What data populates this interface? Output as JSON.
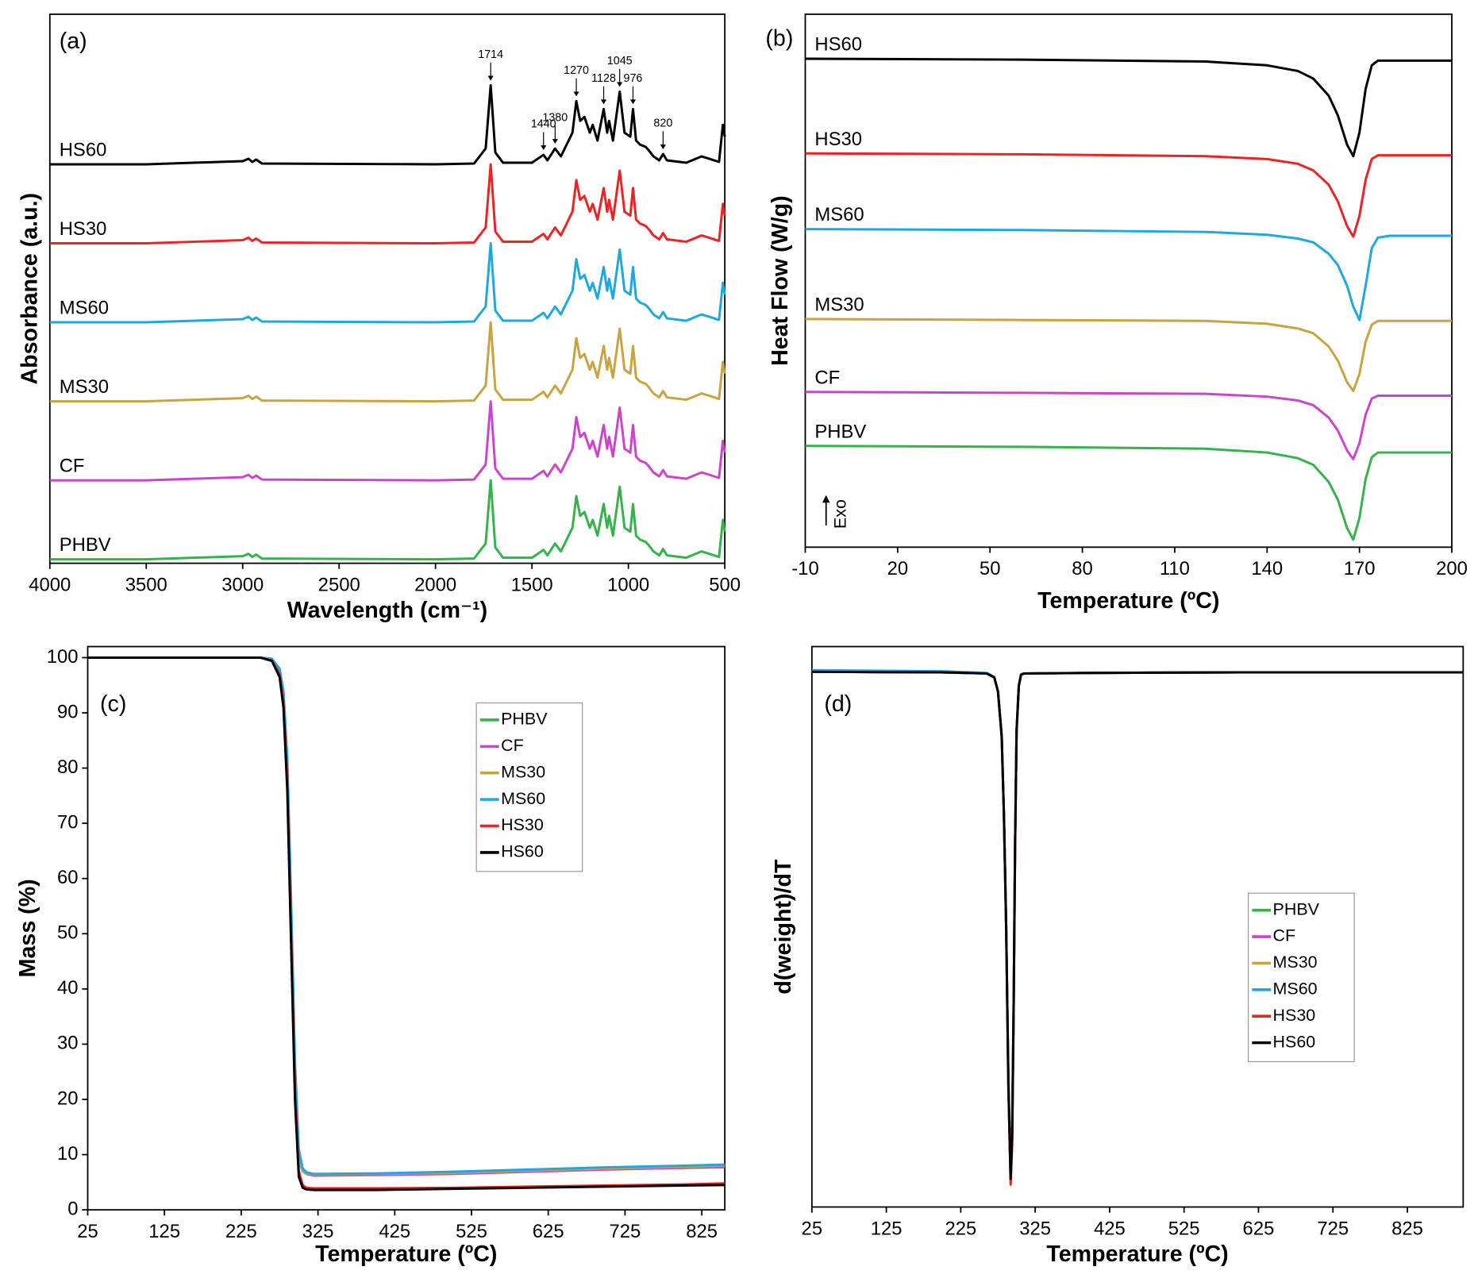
{
  "chart_data": [
    {
      "type": "line",
      "panel_label": "(a)",
      "x_label": "Wavelength (cm⁻¹)",
      "y_label": "Absorbance (a.u.)",
      "xlim": [
        4000,
        500
      ],
      "xticks": [
        4000,
        3500,
        3000,
        2500,
        2000,
        1500,
        1000,
        500
      ],
      "ylim": [
        -0.05,
        6.9
      ],
      "legend": "inline",
      "x": [
        4000,
        3500,
        3000,
        2970,
        2950,
        2930,
        2900,
        2000,
        1800,
        1740,
        1714,
        1690,
        1650,
        1500,
        1440,
        1420,
        1380,
        1350,
        1290,
        1270,
        1250,
        1228,
        1200,
        1185,
        1160,
        1128,
        1110,
        1100,
        1080,
        1045,
        1020,
        990,
        976,
        960,
        940,
        910,
        895,
        870,
        840,
        820,
        800,
        700,
        620,
        580,
        530,
        510,
        500
      ],
      "series": [
        {
          "name": "PHBV",
          "color": "#33b34a",
          "values": [
            0,
            0,
            0.04,
            0.07,
            0.03,
            0.06,
            0.01,
            0,
            0.01,
            0.2,
            1.0,
            0.15,
            0.02,
            0.02,
            0.12,
            0.05,
            0.2,
            0.1,
            0.4,
            0.8,
            0.55,
            0.6,
            0.4,
            0.5,
            0.3,
            0.7,
            0.4,
            0.55,
            0.3,
            0.92,
            0.4,
            0.35,
            0.7,
            0.3,
            0.25,
            0.22,
            0.18,
            0.1,
            0.05,
            0.13,
            0.05,
            0.02,
            0.1,
            0.07,
            0.03,
            0.5,
            0.35
          ]
        },
        {
          "name": "CF",
          "color": "#cc44cc",
          "values": [
            1,
            1,
            1.04,
            1.07,
            1.03,
            1.06,
            1.01,
            1,
            1.01,
            1.2,
            2.0,
            1.15,
            1.02,
            1.02,
            1.12,
            1.05,
            1.2,
            1.1,
            1.4,
            1.8,
            1.55,
            1.6,
            1.4,
            1.5,
            1.3,
            1.7,
            1.4,
            1.55,
            1.3,
            1.92,
            1.4,
            1.35,
            1.7,
            1.3,
            1.25,
            1.22,
            1.18,
            1.1,
            1.05,
            1.13,
            1.05,
            1.02,
            1.1,
            1.07,
            1.03,
            1.5,
            1.35
          ]
        },
        {
          "name": "MS30",
          "color": "#c9a33f",
          "values": [
            2,
            2,
            2.04,
            2.07,
            2.03,
            2.06,
            2.01,
            2,
            2.01,
            2.2,
            3.0,
            2.15,
            2.02,
            2.02,
            2.12,
            2.05,
            2.2,
            2.1,
            2.4,
            2.8,
            2.55,
            2.6,
            2.4,
            2.5,
            2.3,
            2.7,
            2.4,
            2.55,
            2.3,
            2.92,
            2.4,
            2.35,
            2.7,
            2.3,
            2.25,
            2.22,
            2.18,
            2.1,
            2.05,
            2.13,
            2.05,
            2.02,
            2.1,
            2.07,
            2.03,
            2.5,
            2.35
          ]
        },
        {
          "name": "MS60",
          "color": "#1ea8e0",
          "values": [
            3,
            3,
            3.04,
            3.07,
            3.03,
            3.06,
            3.01,
            3,
            3.01,
            3.2,
            4.0,
            3.15,
            3.02,
            3.02,
            3.12,
            3.05,
            3.2,
            3.1,
            3.4,
            3.8,
            3.55,
            3.6,
            3.4,
            3.5,
            3.3,
            3.7,
            3.4,
            3.55,
            3.3,
            3.92,
            3.4,
            3.35,
            3.7,
            3.3,
            3.25,
            3.22,
            3.18,
            3.1,
            3.05,
            3.13,
            3.05,
            3.02,
            3.1,
            3.07,
            3.03,
            3.5,
            3.35
          ]
        },
        {
          "name": "HS30",
          "color": "#ee2222",
          "values": [
            4,
            4,
            4.04,
            4.07,
            4.03,
            4.06,
            4.01,
            4,
            4.01,
            4.2,
            5.0,
            4.15,
            4.02,
            4.02,
            4.12,
            4.05,
            4.2,
            4.1,
            4.4,
            4.8,
            4.55,
            4.6,
            4.4,
            4.5,
            4.3,
            4.7,
            4.4,
            4.55,
            4.3,
            4.92,
            4.4,
            4.35,
            4.7,
            4.3,
            4.25,
            4.22,
            4.18,
            4.1,
            4.05,
            4.13,
            4.05,
            4.02,
            4.1,
            4.07,
            4.03,
            4.5,
            4.35
          ]
        },
        {
          "name": "HS60",
          "color": "#000000",
          "values": [
            5,
            5,
            5.04,
            5.07,
            5.03,
            5.06,
            5.01,
            5,
            5.01,
            5.2,
            6.0,
            5.15,
            5.02,
            5.02,
            5.12,
            5.05,
            5.2,
            5.1,
            5.4,
            5.8,
            5.55,
            5.6,
            5.4,
            5.5,
            5.3,
            5.7,
            5.4,
            5.55,
            5.3,
            5.92,
            5.4,
            5.35,
            5.7,
            5.3,
            5.25,
            5.22,
            5.18,
            5.1,
            5.05,
            5.13,
            5.05,
            5.02,
            5.1,
            5.07,
            5.03,
            5.5,
            5.35
          ]
        }
      ],
      "annotations": [
        {
          "x": 1714,
          "label": "1714"
        },
        {
          "x": 1440,
          "label": "1440"
        },
        {
          "x": 1380,
          "label": "1380"
        },
        {
          "x": 1270,
          "label": "1270"
        },
        {
          "x": 1128,
          "label": "1128"
        },
        {
          "x": 1045,
          "label": "1045"
        },
        {
          "x": 976,
          "label": "976"
        },
        {
          "x": 820,
          "label": "820"
        }
      ]
    },
    {
      "type": "line",
      "panel_label": "(b)",
      "x_label": "Temperature (ºC)",
      "y_label": "Heat Flow (W/g)",
      "annotation": "Exo",
      "xlim": [
        -10,
        200
      ],
      "xticks": [
        -10,
        20,
        50,
        80,
        110,
        140,
        170,
        200
      ],
      "ylim": [
        0,
        5.63
      ],
      "legend": "inline",
      "x": [
        -10,
        60,
        120,
        140,
        150,
        155,
        160,
        163,
        166,
        168,
        170,
        172,
        174,
        176,
        180,
        200
      ],
      "series": [
        {
          "name": "PHBV",
          "color": "#33b34a",
          "values": [
            1.07,
            1.06,
            1.04,
            1.0,
            0.94,
            0.87,
            0.69,
            0.5,
            0.2,
            0.08,
            0.31,
            0.72,
            0.95,
            1.0,
            1.0,
            1.0
          ]
        },
        {
          "name": "CF",
          "color": "#cc44cc",
          "values": [
            1.64,
            1.63,
            1.62,
            1.59,
            1.55,
            1.5,
            1.37,
            1.23,
            1.02,
            0.93,
            1.1,
            1.4,
            1.57,
            1.6,
            1.6,
            1.6
          ]
        },
        {
          "name": "MS30",
          "color": "#c9a33f",
          "values": [
            2.41,
            2.4,
            2.39,
            2.36,
            2.31,
            2.26,
            2.12,
            1.97,
            1.74,
            1.65,
            1.83,
            2.17,
            2.35,
            2.39,
            2.39,
            2.39
          ]
        },
        {
          "name": "MS60",
          "color": "#1ea8e0",
          "values": [
            3.36,
            3.35,
            3.33,
            3.3,
            3.26,
            3.22,
            3.1,
            2.98,
            2.76,
            2.54,
            2.4,
            2.76,
            3.16,
            3.27,
            3.29,
            3.29
          ]
        },
        {
          "name": "HS30",
          "color": "#ee2222",
          "values": [
            4.16,
            4.15,
            4.13,
            4.1,
            4.05,
            3.98,
            3.83,
            3.65,
            3.39,
            3.28,
            3.5,
            3.88,
            4.1,
            4.14,
            4.14,
            4.14
          ]
        },
        {
          "name": "HS60",
          "color": "#000000",
          "values": [
            5.16,
            5.15,
            5.13,
            5.09,
            5.03,
            4.95,
            4.77,
            4.56,
            4.25,
            4.13,
            4.38,
            4.84,
            5.09,
            5.14,
            5.14,
            5.14
          ]
        }
      ]
    },
    {
      "type": "line",
      "panel_label": "(c)",
      "x_label": "Temperature (ºC)",
      "y_label": "Mass (%)",
      "xlim": [
        25,
        855
      ],
      "xticks": [
        25,
        125,
        225,
        325,
        425,
        525,
        625,
        725,
        825
      ],
      "ylim": [
        0,
        102
      ],
      "yticks": [
        0,
        10,
        20,
        30,
        40,
        50,
        60,
        70,
        80,
        90,
        100
      ],
      "legend": "upper center",
      "x": [
        25,
        250,
        265,
        275,
        280,
        285,
        290,
        295,
        300,
        305,
        310,
        320,
        400,
        500,
        600,
        700,
        800,
        855
      ],
      "series": [
        {
          "name": "PHBV",
          "color": "#33b34a",
          "values": [
            100,
            100,
            99.5,
            97,
            92,
            78,
            50,
            22,
            9,
            7,
            6.6,
            6.3,
            6.4,
            6.6,
            7.0,
            7.4,
            7.6,
            7.7
          ]
        },
        {
          "name": "CF",
          "color": "#cc44cc",
          "values": [
            100,
            100,
            99.7,
            97.5,
            93,
            80,
            53,
            24,
            9.5,
            7,
            6.5,
            6.2,
            6.3,
            6.5,
            6.9,
            7.3,
            7.6,
            7.8
          ]
        },
        {
          "name": "MS30",
          "color": "#c9a33f",
          "values": [
            100,
            100,
            99.6,
            97,
            92.5,
            79,
            52,
            23,
            9,
            7,
            6.6,
            6.4,
            6.5,
            6.7,
            7.1,
            7.5,
            7.8,
            8.0
          ]
        },
        {
          "name": "MS60",
          "color": "#1ea8e0",
          "values": [
            100,
            100,
            99.8,
            98,
            94,
            82,
            56,
            27,
            11,
            7.5,
            6.8,
            6.5,
            6.6,
            6.9,
            7.3,
            7.7,
            8.0,
            8.2
          ]
        },
        {
          "name": "HS30",
          "color": "#ee2222",
          "values": [
            100,
            100,
            99.5,
            97,
            92,
            78,
            50,
            22,
            7,
            4.5,
            4.0,
            3.9,
            3.9,
            4.0,
            4.2,
            4.4,
            4.6,
            4.8
          ]
        },
        {
          "name": "HS60",
          "color": "#000000",
          "values": [
            100,
            100,
            99.4,
            96.5,
            91,
            76,
            48,
            20,
            6,
            4,
            3.7,
            3.6,
            3.6,
            3.8,
            4.0,
            4.2,
            4.4,
            4.5
          ]
        }
      ]
    },
    {
      "type": "line",
      "panel_label": "(d)",
      "x_label": "Temperature (ºC)",
      "y_label": "d(weight)/dT",
      "xlim": [
        25,
        900
      ],
      "xticks": [
        25,
        125,
        225,
        325,
        425,
        525,
        625,
        725,
        825
      ],
      "ylim": [
        0,
        100
      ],
      "legend": "center right",
      "x": [
        25,
        200,
        260,
        270,
        275,
        280,
        283,
        286,
        289,
        292,
        294,
        296,
        298,
        300,
        303,
        306,
        310,
        400,
        600,
        900
      ],
      "series": [
        {
          "name": "PHBV",
          "color": "#33b34a",
          "values": [
            95.5,
            95.4,
            95.2,
            94.5,
            92,
            84,
            70,
            50,
            22,
            5,
            12,
            35,
            65,
            85,
            93,
            95,
            95.2,
            95.3,
            95.4,
            95.4
          ]
        },
        {
          "name": "CF",
          "color": "#cc44cc",
          "values": [
            95.5,
            95.4,
            95.2,
            94.5,
            92,
            84,
            70,
            50,
            22,
            5,
            12,
            35,
            65,
            85,
            93,
            95,
            95.2,
            95.3,
            95.4,
            95.4
          ]
        },
        {
          "name": "MS30",
          "color": "#c9a33f",
          "values": [
            95.5,
            95.4,
            95.2,
            94.5,
            92,
            84,
            70,
            50,
            22,
            5.5,
            12,
            35,
            65,
            85,
            93,
            95,
            95.2,
            95.3,
            95.4,
            95.4
          ]
        },
        {
          "name": "MS60",
          "color": "#1ea8e0",
          "values": [
            95.8,
            95.6,
            95.3,
            94.6,
            92,
            84,
            70,
            50,
            23,
            6,
            13,
            36,
            65,
            85,
            93,
            95,
            95.2,
            95.3,
            95.4,
            95.4
          ]
        },
        {
          "name": "HS30",
          "color": "#ee2222",
          "values": [
            95.5,
            95.4,
            95.2,
            94.5,
            92,
            84,
            70,
            50,
            21,
            4,
            11,
            34,
            64,
            85,
            93,
            95,
            95.2,
            95.3,
            95.4,
            95.4
          ]
        },
        {
          "name": "HS60",
          "color": "#000000",
          "values": [
            95.5,
            95.4,
            95.2,
            94.5,
            92,
            84,
            70,
            50,
            22,
            5,
            12,
            35,
            65,
            85,
            93,
            95,
            95.2,
            95.3,
            95.4,
            95.4
          ]
        }
      ]
    }
  ]
}
